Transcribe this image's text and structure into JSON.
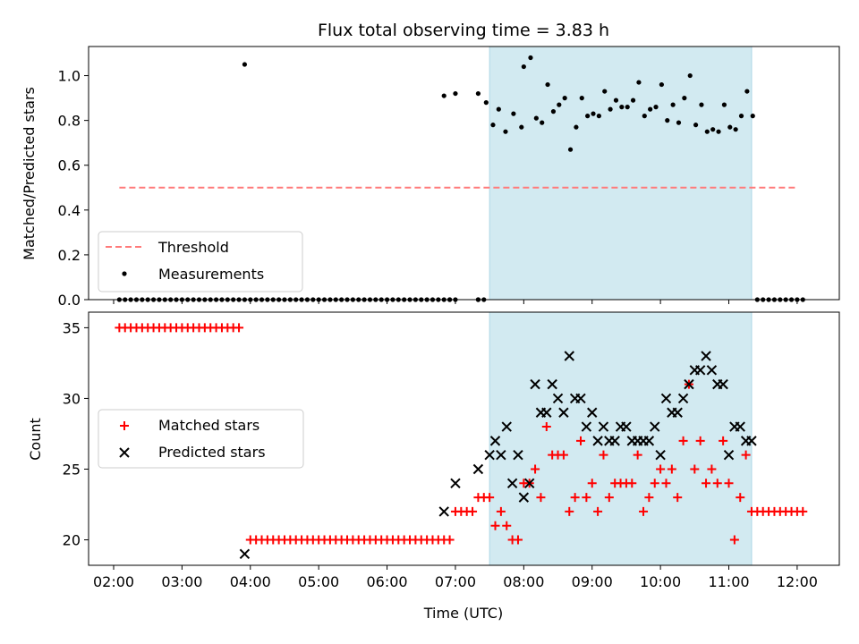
{
  "title": "Flux total observing time = 3.83 h",
  "xlabel": "Time (UTC)",
  "xtick_labels": [
    "02:00",
    "03:00",
    "04:00",
    "05:00",
    "06:00",
    "07:00",
    "08:00",
    "09:00",
    "10:00",
    "11:00",
    "12:00"
  ],
  "colors": {
    "threshold": "#ff7a7a",
    "measure": "#000000",
    "matched": "#ff0000",
    "predicted": "#000000",
    "shade": "#add8e6"
  },
  "chart_data": [
    {
      "type": "scatter",
      "ylabel": "Matched/Predicted stars",
      "ylim": [
        0,
        1.13
      ],
      "yticks": [
        0.0,
        0.2,
        0.4,
        0.6,
        0.8,
        1.0
      ],
      "xlim": [
        "01:38",
        "12:37"
      ],
      "shaded_region": [
        "07:30",
        "11:20"
      ],
      "legend": {
        "position": "lower-left",
        "threshold_label": "Threshold",
        "measurements_label": "Measurements"
      },
      "threshold": {
        "y": 0.5,
        "x_range": [
          "02:05",
          "12:00"
        ]
      },
      "zero_points": {
        "x_ranges": [
          [
            "02:05",
            "03:55"
          ],
          [
            "04:00",
            "06:55"
          ],
          [
            "07:20",
            "07:25"
          ],
          [
            "11:25",
            "12:05"
          ]
        ],
        "extra": [
          "06:55",
          "07:00",
          "07:20"
        ],
        "y": 0
      },
      "measurements": {
        "x": [
          "03:55",
          "06:50",
          "07:00",
          "07:20",
          "07:27",
          "07:33",
          "07:38",
          "07:44",
          "07:51",
          "07:58",
          "08:00",
          "08:06",
          "08:11",
          "08:16",
          "08:21",
          "08:26",
          "08:31",
          "08:36",
          "08:41",
          "08:46",
          "08:51",
          "08:56",
          "09:01",
          "09:06",
          "09:11",
          "09:16",
          "09:21",
          "09:26",
          "09:31",
          "09:36",
          "09:41",
          "09:46",
          "09:51",
          "09:56",
          "10:01",
          "10:06",
          "10:11",
          "10:16",
          "10:21",
          "10:26",
          "10:31",
          "10:36",
          "10:41",
          "10:46",
          "10:51",
          "10:56",
          "11:01",
          "11:06",
          "11:11",
          "11:16",
          "11:21"
        ],
        "y": [
          1.05,
          0.91,
          0.92,
          0.92,
          0.88,
          0.78,
          0.85,
          0.75,
          0.83,
          0.77,
          1.04,
          1.08,
          0.81,
          0.79,
          0.96,
          0.84,
          0.87,
          0.9,
          0.67,
          0.77,
          0.9,
          0.82,
          0.83,
          0.82,
          0.93,
          0.85,
          0.89,
          0.86,
          0.86,
          0.89,
          0.97,
          0.82,
          0.85,
          0.86,
          0.96,
          0.8,
          0.87,
          0.79,
          0.9,
          1.0,
          0.78,
          0.87,
          0.75,
          0.76,
          0.75,
          0.87,
          0.77,
          0.76,
          0.82,
          0.93,
          0.82
        ]
      }
    },
    {
      "type": "scatter",
      "ylabel": "Count",
      "ylim": [
        18.2,
        36.1
      ],
      "yticks": [
        20,
        25,
        30,
        35
      ],
      "xlim": [
        "01:38",
        "12:37"
      ],
      "shaded_region": [
        "07:30",
        "11:20"
      ],
      "legend": {
        "position": "center-left",
        "matched_label": "Matched stars",
        "predicted_label": "Predicted stars"
      },
      "matched_constant_runs": [
        {
          "x_range": [
            "02:05",
            "03:50"
          ],
          "y": 35
        },
        {
          "x_range": [
            "04:00",
            "06:55"
          ],
          "y": 20
        },
        {
          "x_range": [
            "07:00",
            "07:15"
          ],
          "y": 22
        },
        {
          "x_range": [
            "11:25",
            "12:05"
          ],
          "y": 22
        }
      ],
      "matched": {
        "x": [
          "07:20",
          "07:25",
          "07:30",
          "07:35",
          "07:40",
          "07:45",
          "07:50",
          "07:55",
          "08:00",
          "08:05",
          "08:10",
          "08:15",
          "08:20",
          "08:25",
          "08:30",
          "08:35",
          "08:40",
          "08:45",
          "08:50",
          "08:55",
          "09:00",
          "09:05",
          "09:10",
          "09:15",
          "09:20",
          "09:25",
          "09:30",
          "09:35",
          "09:40",
          "09:45",
          "09:50",
          "09:55",
          "10:00",
          "10:05",
          "10:10",
          "10:15",
          "10:20",
          "10:25",
          "10:30",
          "10:35",
          "10:40",
          "10:45",
          "10:50",
          "10:55",
          "11:00",
          "11:05",
          "11:10",
          "11:15",
          "11:20"
        ],
        "y": [
          23,
          23,
          23,
          21,
          22,
          21,
          20,
          20,
          24,
          24,
          25,
          23,
          28,
          26,
          26,
          26,
          22,
          23,
          27,
          23,
          24,
          22,
          26,
          23,
          24,
          24,
          24,
          24,
          26,
          22,
          23,
          24,
          25,
          24,
          25,
          23,
          27,
          31,
          25,
          27,
          24,
          25,
          24,
          27,
          24,
          20,
          23,
          26,
          22
        ]
      },
      "predicted": {
        "x": [
          "03:55",
          "06:50",
          "07:00",
          "07:20",
          "07:30",
          "07:35",
          "07:40",
          "07:45",
          "07:50",
          "07:55",
          "08:00",
          "08:05",
          "08:10",
          "08:15",
          "08:20",
          "08:25",
          "08:30",
          "08:35",
          "08:40",
          "08:45",
          "08:50",
          "08:55",
          "09:00",
          "09:05",
          "09:10",
          "09:15",
          "09:20",
          "09:25",
          "09:30",
          "09:35",
          "09:40",
          "09:45",
          "09:50",
          "09:55",
          "10:00",
          "10:05",
          "10:10",
          "10:15",
          "10:20",
          "10:25",
          "10:30",
          "10:35",
          "10:40",
          "10:45",
          "10:50",
          "10:55",
          "11:00",
          "11:05",
          "11:10",
          "11:15",
          "11:20"
        ],
        "y": [
          19,
          22,
          24,
          25,
          26,
          27,
          26,
          28,
          24,
          26,
          23,
          24,
          31,
          29,
          29,
          31,
          30,
          29,
          33,
          30,
          30,
          28,
          29,
          27,
          28,
          27,
          27,
          28,
          28,
          27,
          27,
          27,
          27,
          28,
          26,
          30,
          29,
          29,
          30,
          31,
          32,
          32,
          33,
          32,
          31,
          31,
          26,
          28,
          28,
          27,
          27
        ]
      }
    }
  ]
}
